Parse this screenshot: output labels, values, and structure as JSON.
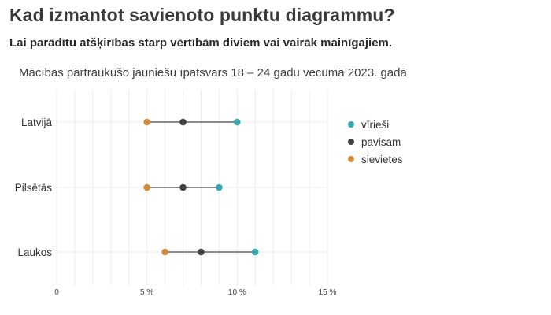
{
  "heading": {
    "title": "Kad izmantot savienoto punktu diagrammu?",
    "subtitle": "Lai parādītu atšķirības starp vērtībām diviem vai vairāk mainīgajiem."
  },
  "chart_data": {
    "type": "dumbbell",
    "title": "Mācības pārtraukušo jauniešu īpatsvars 18 – 24 gadu vecumā 2023. gadā",
    "xlabel": "",
    "ylabel": "",
    "categories": [
      "Latvijā",
      "Pilsētās",
      "Laukos"
    ],
    "x_ticks": [
      0,
      5,
      10,
      15
    ],
    "x_tick_labels": [
      "0",
      "5 %",
      "10 %",
      "15 %"
    ],
    "xlim": [
      0,
      15
    ],
    "grid": true,
    "legend_position": "right",
    "series": [
      {
        "name": "vīrieši",
        "color": "#3aa6b0",
        "values": [
          10,
          9,
          11
        ]
      },
      {
        "name": "pavisam",
        "color": "#404040",
        "values": [
          7,
          7,
          8
        ]
      },
      {
        "name": "sievietes",
        "color": "#d08c3a",
        "values": [
          5,
          5,
          6
        ]
      }
    ],
    "connector_color": "#8a8a8a"
  }
}
